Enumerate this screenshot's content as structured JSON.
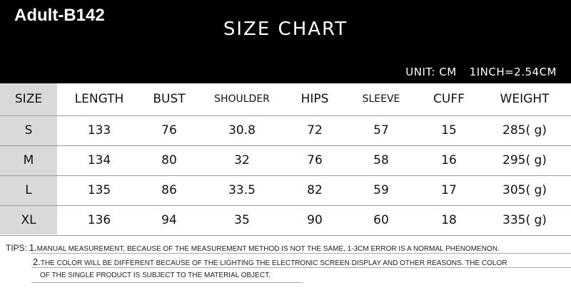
{
  "model": "Adult-B142",
  "title": "SIZE CHART",
  "unit": "UNIT: CM",
  "conversion": "1INCH=2.54CM",
  "columns": [
    "SIZE",
    "LENGTH",
    "BUST",
    "SHOULDER",
    "HIPS",
    "SLEEVE",
    "CUFF",
    "WEIGHT"
  ],
  "rows": [
    [
      "S",
      "133",
      "76",
      "30.8",
      "72",
      "57",
      "15",
      "285(  g)"
    ],
    [
      "M",
      "134",
      "80",
      "32",
      "76",
      "58",
      "16",
      "295(  g)"
    ],
    [
      "L",
      "135",
      "86",
      "33.5",
      "82",
      "59",
      "17",
      "305(  g)"
    ],
    [
      "XL",
      "136",
      "94",
      "35",
      "90",
      "60",
      "18",
      "335(  g)"
    ]
  ],
  "tips": {
    "label": "TIPS:",
    "items": [
      {
        "num": "1.",
        "text": "MANUAL MEASUREMENT, BECAUSE OF THE MEASUREMENT METHOD IS NOT THE SAME, 1-3CM ERROR IS A NORMAL PHENOMENON."
      },
      {
        "num": "2.",
        "text": "THE COLOR WILL BE DIFFERENT BECAUSE OF THE LIGHTING THE ELECTRONIC SCREEN DISPLAY AND OTHER REASONS. THE COLOR",
        "cont": "OF THE SINGLE PRODUCT IS SUBJECT TO THE MATERIAL OBJECT."
      }
    ]
  },
  "colors": {
    "header_bg": "#000000",
    "size_col_bg": "#d9d9d9"
  }
}
